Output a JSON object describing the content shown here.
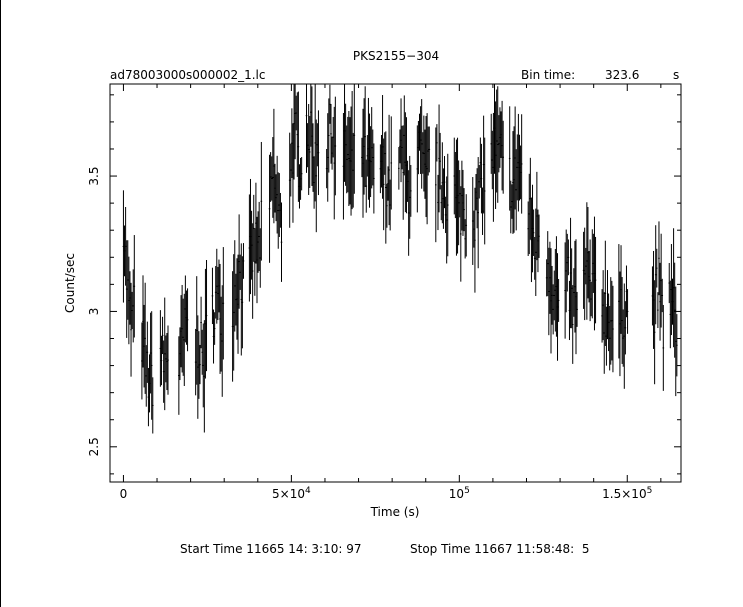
{
  "chart_data": {
    "type": "scatter",
    "title": "PKS2155−304",
    "file_label": "ad78003000s000002_1.lc",
    "bin_time_label": "Bin time:",
    "bin_time_value": "323.6",
    "bin_time_unit": "s",
    "xlabel": "Time (s)",
    "ylabel": "Count/sec",
    "xlim": [
      -4000,
      166000
    ],
    "ylim": [
      2.37,
      3.84
    ],
    "x_ticks": [
      {
        "value": 0,
        "base": "0",
        "exp": ""
      },
      {
        "value": 50000,
        "base": "5×10",
        "exp": "4"
      },
      {
        "value": 100000,
        "base": "10",
        "exp": "5"
      },
      {
        "value": 150000,
        "base": "1.5×10",
        "exp": "5"
      }
    ],
    "y_ticks": [
      {
        "value": 2.5,
        "label": "2.5"
      },
      {
        "value": 3,
        "label": "3"
      },
      {
        "value": 3.5,
        "label": "3.5"
      }
    ],
    "footer": {
      "start": "Start Time 11665 14: 3:10: 97",
      "stop": "Stop Time 11667 11:58:48:  5"
    },
    "segments": [
      {
        "t0": 0,
        "t1": 3500,
        "y": [
          3.35,
          3.15,
          3.0,
          2.95,
          3.0
        ]
      },
      {
        "t0": 5500,
        "t1": 9000,
        "y": [
          2.9,
          2.8,
          2.75,
          2.75
        ]
      },
      {
        "t0": 11000,
        "t1": 13500,
        "y": [
          2.85,
          2.8,
          2.85
        ]
      },
      {
        "t0": 16500,
        "t1": 19500,
        "y": [
          2.8,
          2.85,
          2.9,
          2.95
        ]
      },
      {
        "t0": 21500,
        "t1": 25000,
        "y": [
          2.85,
          2.9,
          2.8,
          2.9
        ]
      },
      {
        "t0": 26500,
        "t1": 30000,
        "y": [
          3.0,
          3.05,
          3.0,
          3.0
        ]
      },
      {
        "t0": 32500,
        "t1": 36000,
        "y": [
          3.05,
          3.1,
          3.15,
          3.1
        ]
      },
      {
        "t0": 37500,
        "t1": 41500,
        "y": [
          3.15,
          3.2,
          3.25,
          3.2,
          3.3
        ]
      },
      {
        "t0": 43500,
        "t1": 47500,
        "y": [
          3.35,
          3.5,
          3.45,
          3.35,
          3.3
        ]
      },
      {
        "t0": 49500,
        "t1": 53500,
        "y": [
          3.55,
          3.6,
          3.65,
          3.55,
          3.6
        ]
      },
      {
        "t0": 54500,
        "t1": 58500,
        "y": [
          3.7,
          3.65,
          3.6,
          3.55,
          3.65
        ]
      },
      {
        "t0": 60500,
        "t1": 63500,
        "y": [
          3.6,
          3.65,
          3.7,
          3.55
        ]
      },
      {
        "t0": 65500,
        "t1": 69000,
        "y": [
          3.55,
          3.6,
          3.5,
          3.55
        ]
      },
      {
        "t0": 71000,
        "t1": 75000,
        "y": [
          3.6,
          3.55,
          3.5,
          3.55,
          3.45
        ]
      },
      {
        "t0": 76500,
        "t1": 80000,
        "y": [
          3.55,
          3.5,
          3.5,
          3.45
        ]
      },
      {
        "t0": 82000,
        "t1": 86000,
        "y": [
          3.6,
          3.55,
          3.55,
          3.45,
          3.5
        ]
      },
      {
        "t0": 87500,
        "t1": 91500,
        "y": [
          3.5,
          3.6,
          3.5,
          3.45,
          3.55
        ]
      },
      {
        "t0": 93000,
        "t1": 97000,
        "y": [
          3.55,
          3.45,
          3.5,
          3.4
        ]
      },
      {
        "t0": 98500,
        "t1": 102500,
        "y": [
          3.45,
          3.35,
          3.4,
          3.35
        ]
      },
      {
        "t0": 104000,
        "t1": 108000,
        "y": [
          3.4,
          3.35,
          3.45,
          3.5
        ]
      },
      {
        "t0": 109500,
        "t1": 113500,
        "y": [
          3.55,
          3.6,
          3.55,
          3.6,
          3.5
        ]
      },
      {
        "t0": 115000,
        "t1": 119000,
        "y": [
          3.5,
          3.45,
          3.55,
          3.5
        ]
      },
      {
        "t0": 120500,
        "t1": 124000,
        "y": [
          3.35,
          3.3,
          3.25,
          3.3
        ]
      },
      {
        "t0": 126000,
        "t1": 130000,
        "y": [
          3.2,
          3.15,
          3.1,
          3.05,
          3.0
        ]
      },
      {
        "t0": 131500,
        "t1": 135500,
        "y": [
          3.05,
          3.1,
          3.0,
          3.05
        ]
      },
      {
        "t0": 137000,
        "t1": 141000,
        "y": [
          3.1,
          3.15,
          3.05,
          3.1
        ]
      },
      {
        "t0": 142500,
        "t1": 146000,
        "y": [
          3.05,
          3.0,
          3.0,
          2.95
        ]
      },
      {
        "t0": 147500,
        "t1": 150500,
        "y": [
          2.95,
          3.0,
          3.05
        ]
      },
      {
        "t0": 157500,
        "t1": 161000,
        "y": [
          3.0,
          3.05,
          3.1,
          2.95
        ]
      },
      {
        "t0": 162500,
        "t1": 165000,
        "y": [
          3.05,
          3.0,
          2.95
        ]
      }
    ]
  }
}
